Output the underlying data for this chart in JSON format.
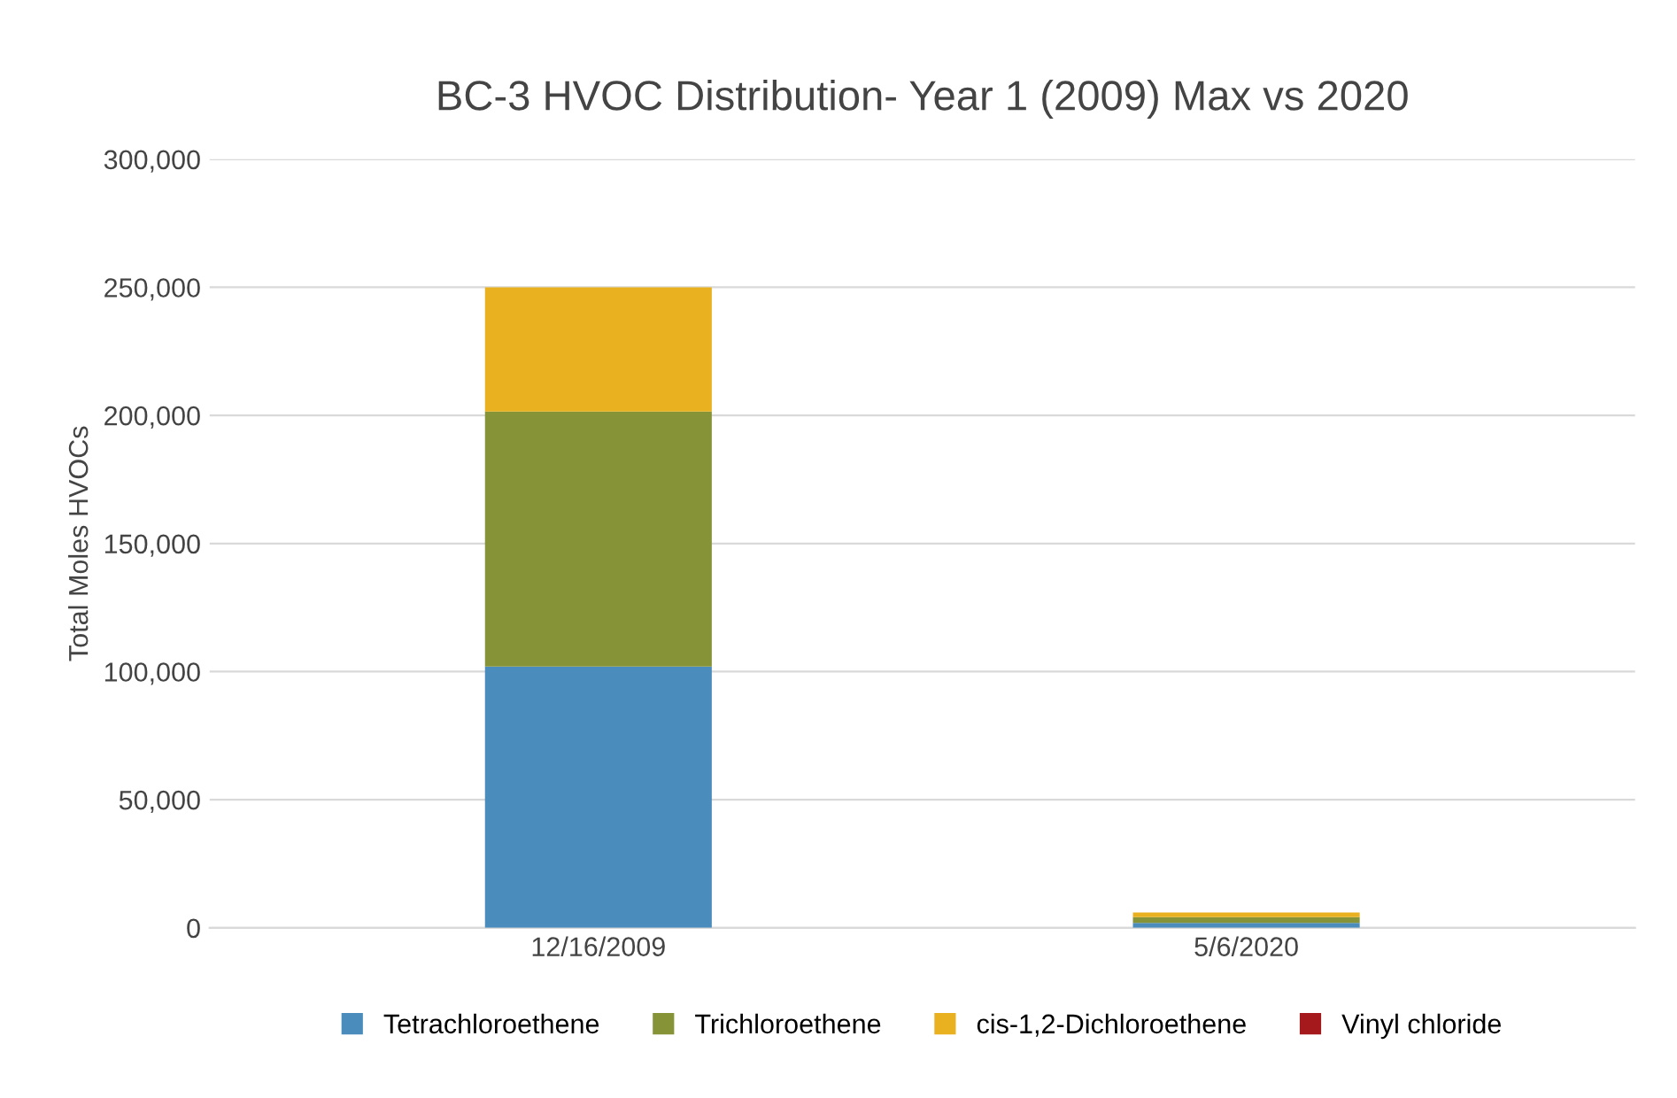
{
  "chart_data": {
    "type": "bar",
    "stacked": true,
    "title": "BC-3 HVOC Distribution- Year 1 (2009) Max vs 2020",
    "ylabel": "Total Moles HVOCs",
    "categories": [
      "12/16/2009",
      "5/6/2020"
    ],
    "series": [
      {
        "name": "Tetrachloroethene",
        "color": "#4a8cbc",
        "values": [
          102000,
          1900
        ]
      },
      {
        "name": "Trichloroethene",
        "color": "#879337",
        "values": [
          99500,
          2300
        ]
      },
      {
        "name": "cis-1,2-Dichloroethene",
        "color": "#e9b11f",
        "values": [
          48500,
          1800
        ]
      },
      {
        "name": "Vinyl chloride",
        "color": "#a5191d",
        "values": [
          0,
          0
        ]
      }
    ],
    "ylim": [
      0,
      300000
    ],
    "yticks": [
      {
        "value": 0,
        "label": "0"
      },
      {
        "value": 50000,
        "label": "50,000"
      },
      {
        "value": 100000,
        "label": "100,000"
      },
      {
        "value": 150000,
        "label": "150,000"
      },
      {
        "value": 200000,
        "label": "200,000"
      },
      {
        "value": 250000,
        "label": "250,000"
      },
      {
        "value": 300000,
        "label": "300,000"
      }
    ],
    "grid": "y",
    "legend": "bottom"
  }
}
